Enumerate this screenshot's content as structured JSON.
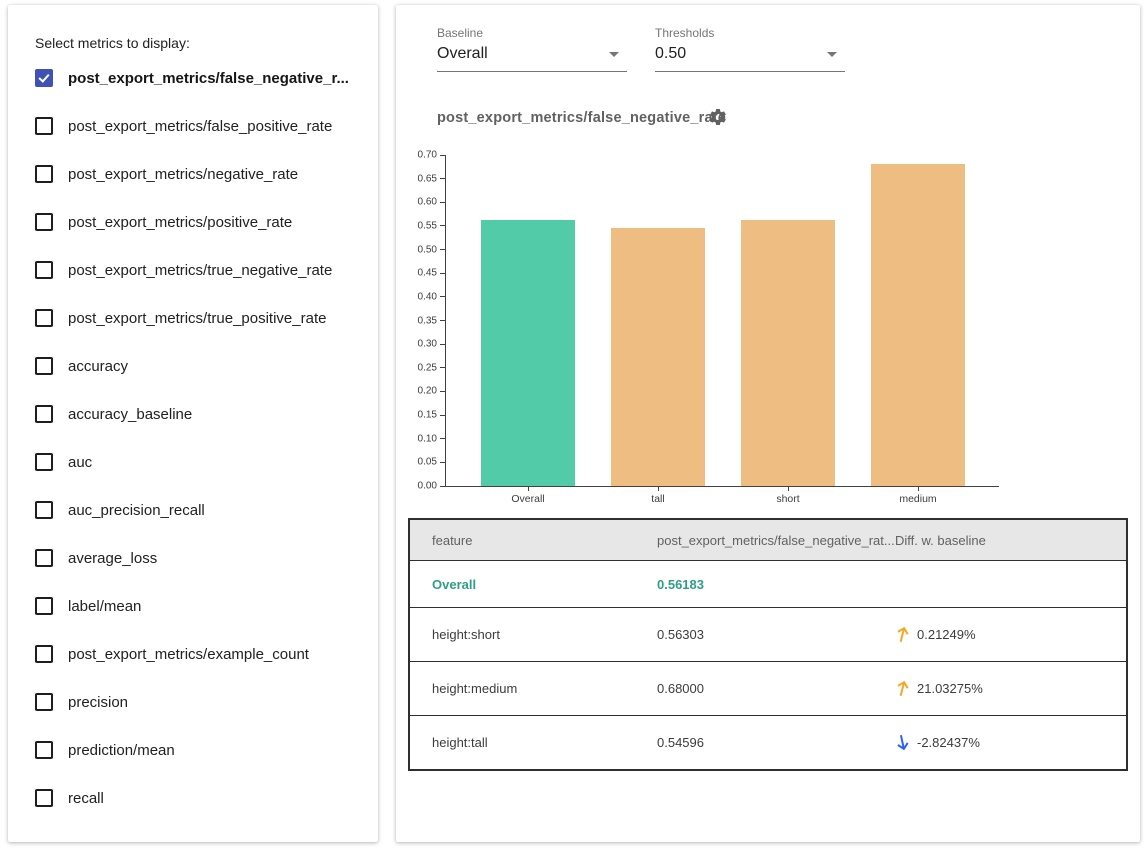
{
  "sidebar": {
    "title": "Select metrics to display:",
    "metrics": [
      {
        "label": "post_export_metrics/false_negative_r...",
        "checked": true
      },
      {
        "label": "post_export_metrics/false_positive_rate",
        "checked": false
      },
      {
        "label": "post_export_metrics/negative_rate",
        "checked": false
      },
      {
        "label": "post_export_metrics/positive_rate",
        "checked": false
      },
      {
        "label": "post_export_metrics/true_negative_rate",
        "checked": false
      },
      {
        "label": "post_export_metrics/true_positive_rate",
        "checked": false
      },
      {
        "label": "accuracy",
        "checked": false
      },
      {
        "label": "accuracy_baseline",
        "checked": false
      },
      {
        "label": "auc",
        "checked": false
      },
      {
        "label": "auc_precision_recall",
        "checked": false
      },
      {
        "label": "average_loss",
        "checked": false
      },
      {
        "label": "label/mean",
        "checked": false
      },
      {
        "label": "post_export_metrics/example_count",
        "checked": false
      },
      {
        "label": "precision",
        "checked": false
      },
      {
        "label": "prediction/mean",
        "checked": false
      },
      {
        "label": "recall",
        "checked": false
      }
    ]
  },
  "controls": {
    "baseline": {
      "label": "Baseline",
      "value": "Overall"
    },
    "thresholds": {
      "label": "Thresholds",
      "value": "0.50"
    }
  },
  "chart": {
    "title": "post_export_metrics/false_negative_rate",
    "settings_icon": "gear-icon"
  },
  "chart_data": {
    "type": "bar",
    "title": "post_export_metrics/false_negative_rate",
    "categories": [
      "Overall",
      "tall",
      "short",
      "medium"
    ],
    "values": [
      0.56183,
      0.54596,
      0.56303,
      0.68
    ],
    "xlabel": "",
    "ylabel": "",
    "ylim": [
      0,
      0.7
    ],
    "ytick_step": 0.05,
    "grid": false,
    "legend": "none",
    "bar_colors": [
      "#52cba8",
      "#edbd82",
      "#edbd82",
      "#edbd82"
    ]
  },
  "table": {
    "columns": [
      "feature",
      "post_export_metrics/false_negative_rat...",
      "Diff. w. baseline"
    ],
    "rows": [
      {
        "feature": "Overall",
        "value": "0.56183",
        "diff": "",
        "direction": "none",
        "baseline": true
      },
      {
        "feature": "height:short",
        "value": "0.56303",
        "diff": "0.21249%",
        "direction": "up",
        "baseline": false
      },
      {
        "feature": "height:medium",
        "value": "0.68000",
        "diff": "21.03275%",
        "direction": "up",
        "baseline": false
      },
      {
        "feature": "height:tall",
        "value": "0.54596",
        "diff": "-2.82437%",
        "direction": "down",
        "baseline": false
      }
    ]
  },
  "colors": {
    "checkbox_checked": "#3f51b5",
    "bar_baseline": "#52cba8",
    "bar_slice": "#edbd82",
    "baseline_text": "#2e9e87",
    "arrow_up": "#f5a623",
    "arrow_down": "#2962ff",
    "axis": "#424242"
  }
}
